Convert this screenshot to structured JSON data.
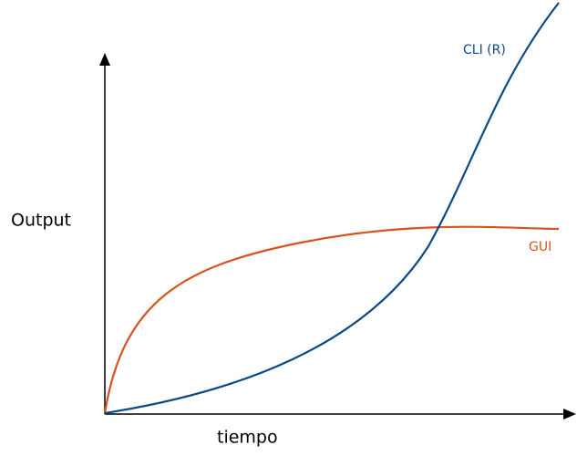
{
  "axes": {
    "y_label": "Output",
    "x_label": "tiempo"
  },
  "curves": [
    {
      "label": "CLI (R)"
    },
    {
      "label": "GUI"
    }
  ]
}
